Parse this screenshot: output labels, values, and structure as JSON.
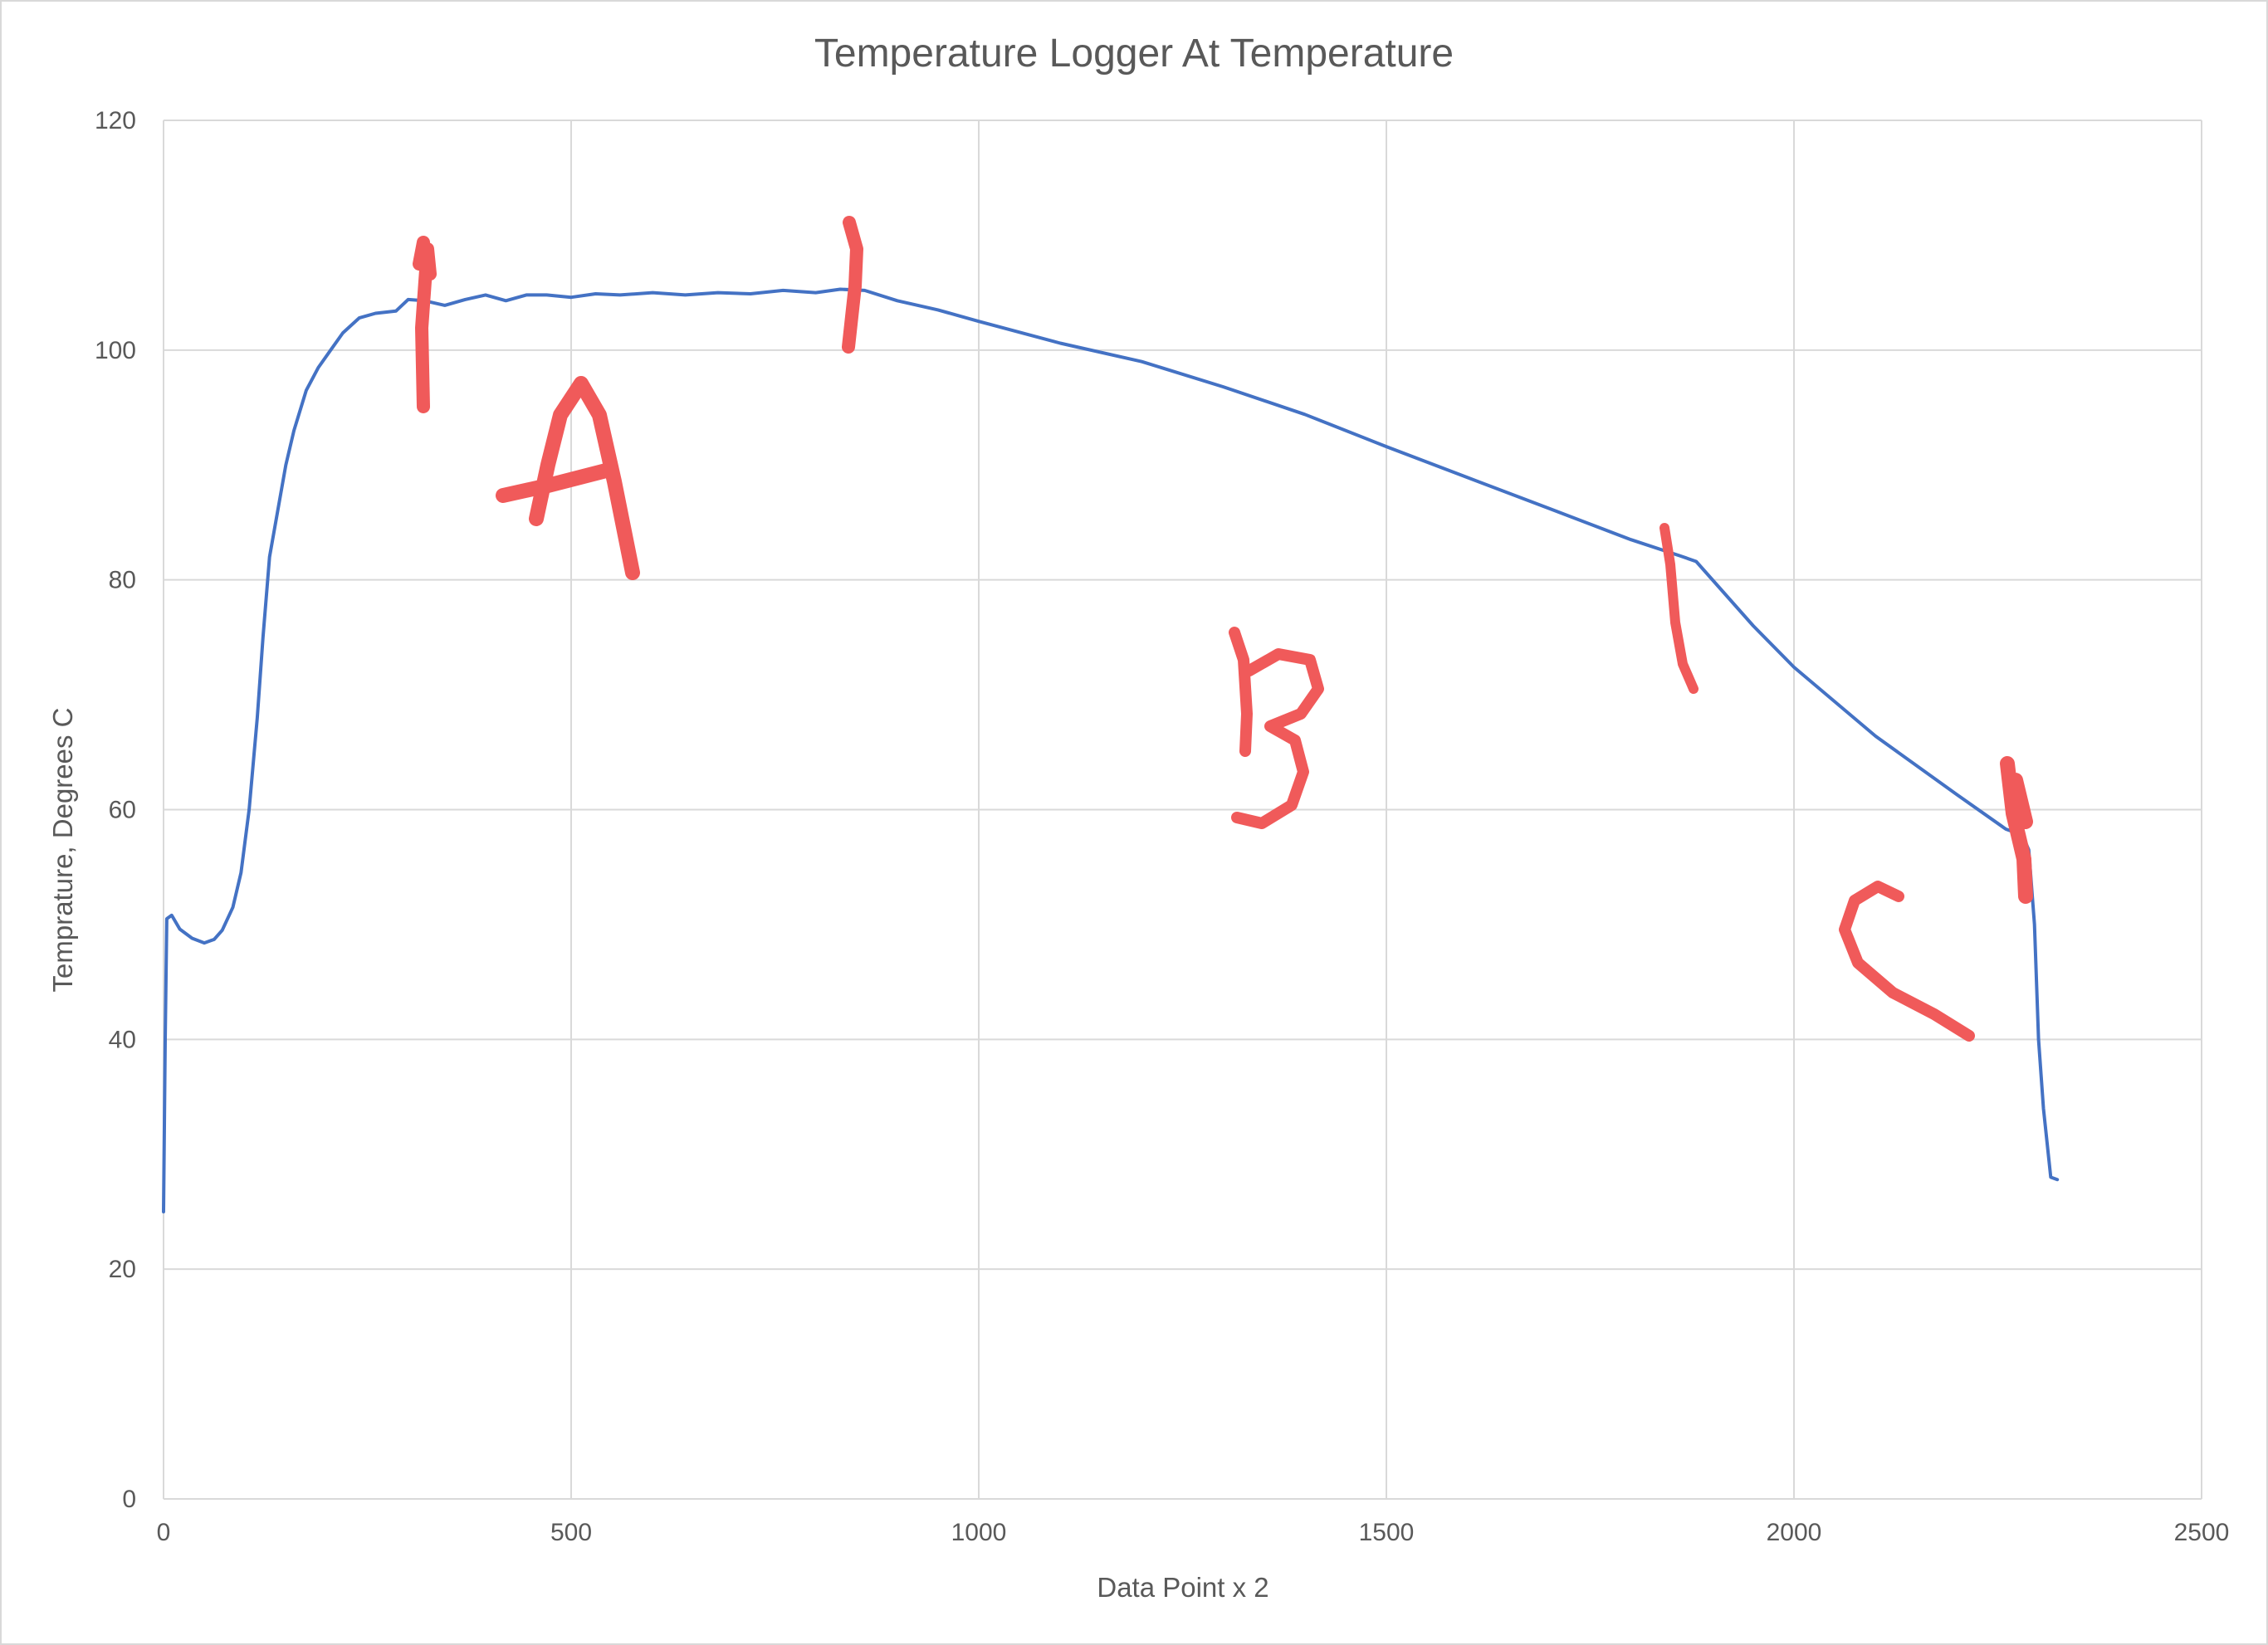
{
  "chart_data": {
    "type": "line",
    "title": "Temperature Logger At Temperature",
    "xlabel": "Data Point x 2",
    "ylabel": "Temprature, Degrees C",
    "xlim": [
      0,
      2500
    ],
    "ylim": [
      0,
      120
    ],
    "x_ticks": [
      0,
      500,
      1000,
      1500,
      2000,
      2500
    ],
    "y_ticks": [
      0,
      20,
      40,
      60,
      80,
      100,
      120
    ],
    "grid": true,
    "legend": "none",
    "series": [
      {
        "color": "#4472c4",
        "points": [
          [
            0,
            25
          ],
          [
            2,
            40
          ],
          [
            4,
            50.5
          ],
          [
            10,
            50.8
          ],
          [
            20,
            49.6
          ],
          [
            35,
            48.8
          ],
          [
            50,
            48.4
          ],
          [
            62,
            48.7
          ],
          [
            72,
            49.5
          ],
          [
            85,
            51.5
          ],
          [
            95,
            54.5
          ],
          [
            105,
            60
          ],
          [
            115,
            68
          ],
          [
            122,
            75
          ],
          [
            130,
            82
          ],
          [
            140,
            86
          ],
          [
            150,
            90
          ],
          [
            160,
            93
          ],
          [
            175,
            96.5
          ],
          [
            190,
            98.5
          ],
          [
            205,
            100
          ],
          [
            220,
            101.5
          ],
          [
            240,
            102.8
          ],
          [
            260,
            103.2
          ],
          [
            285,
            103.4
          ],
          [
            300,
            104.4
          ],
          [
            320,
            104.3
          ],
          [
            345,
            103.9
          ],
          [
            370,
            104.4
          ],
          [
            395,
            104.8
          ],
          [
            420,
            104.3
          ],
          [
            445,
            104.8
          ],
          [
            470,
            104.8
          ],
          [
            500,
            104.6
          ],
          [
            530,
            104.9
          ],
          [
            560,
            104.8
          ],
          [
            600,
            105.0
          ],
          [
            640,
            104.8
          ],
          [
            680,
            105.0
          ],
          [
            720,
            104.9
          ],
          [
            760,
            105.2
          ],
          [
            800,
            105.0
          ],
          [
            830,
            105.3
          ],
          [
            860,
            105.2
          ],
          [
            900,
            104.3
          ],
          [
            950,
            103.5
          ],
          [
            1000,
            102.5
          ],
          [
            1100,
            100.6
          ],
          [
            1200,
            99.0
          ],
          [
            1300,
            96.8
          ],
          [
            1400,
            94.4
          ],
          [
            1500,
            91.6
          ],
          [
            1600,
            88.9
          ],
          [
            1700,
            86.2
          ],
          [
            1800,
            83.5
          ],
          [
            1860,
            82.1
          ],
          [
            1880,
            81.6
          ],
          [
            1950,
            76.0
          ],
          [
            2000,
            72.4
          ],
          [
            2100,
            66.4
          ],
          [
            2200,
            61.3
          ],
          [
            2260,
            58.3
          ],
          [
            2280,
            57.8
          ],
          [
            2288,
            56.5
          ],
          [
            2295,
            50
          ],
          [
            2300,
            40
          ],
          [
            2306,
            34
          ],
          [
            2315,
            28
          ],
          [
            2323,
            27.8
          ]
        ]
      }
    ],
    "annotations": [
      {
        "text": "A",
        "color": "#f05a5a"
      },
      {
        "text": "B",
        "color": "#f05a5a"
      },
      {
        "text": "C",
        "color": "#f05a5a"
      }
    ]
  }
}
